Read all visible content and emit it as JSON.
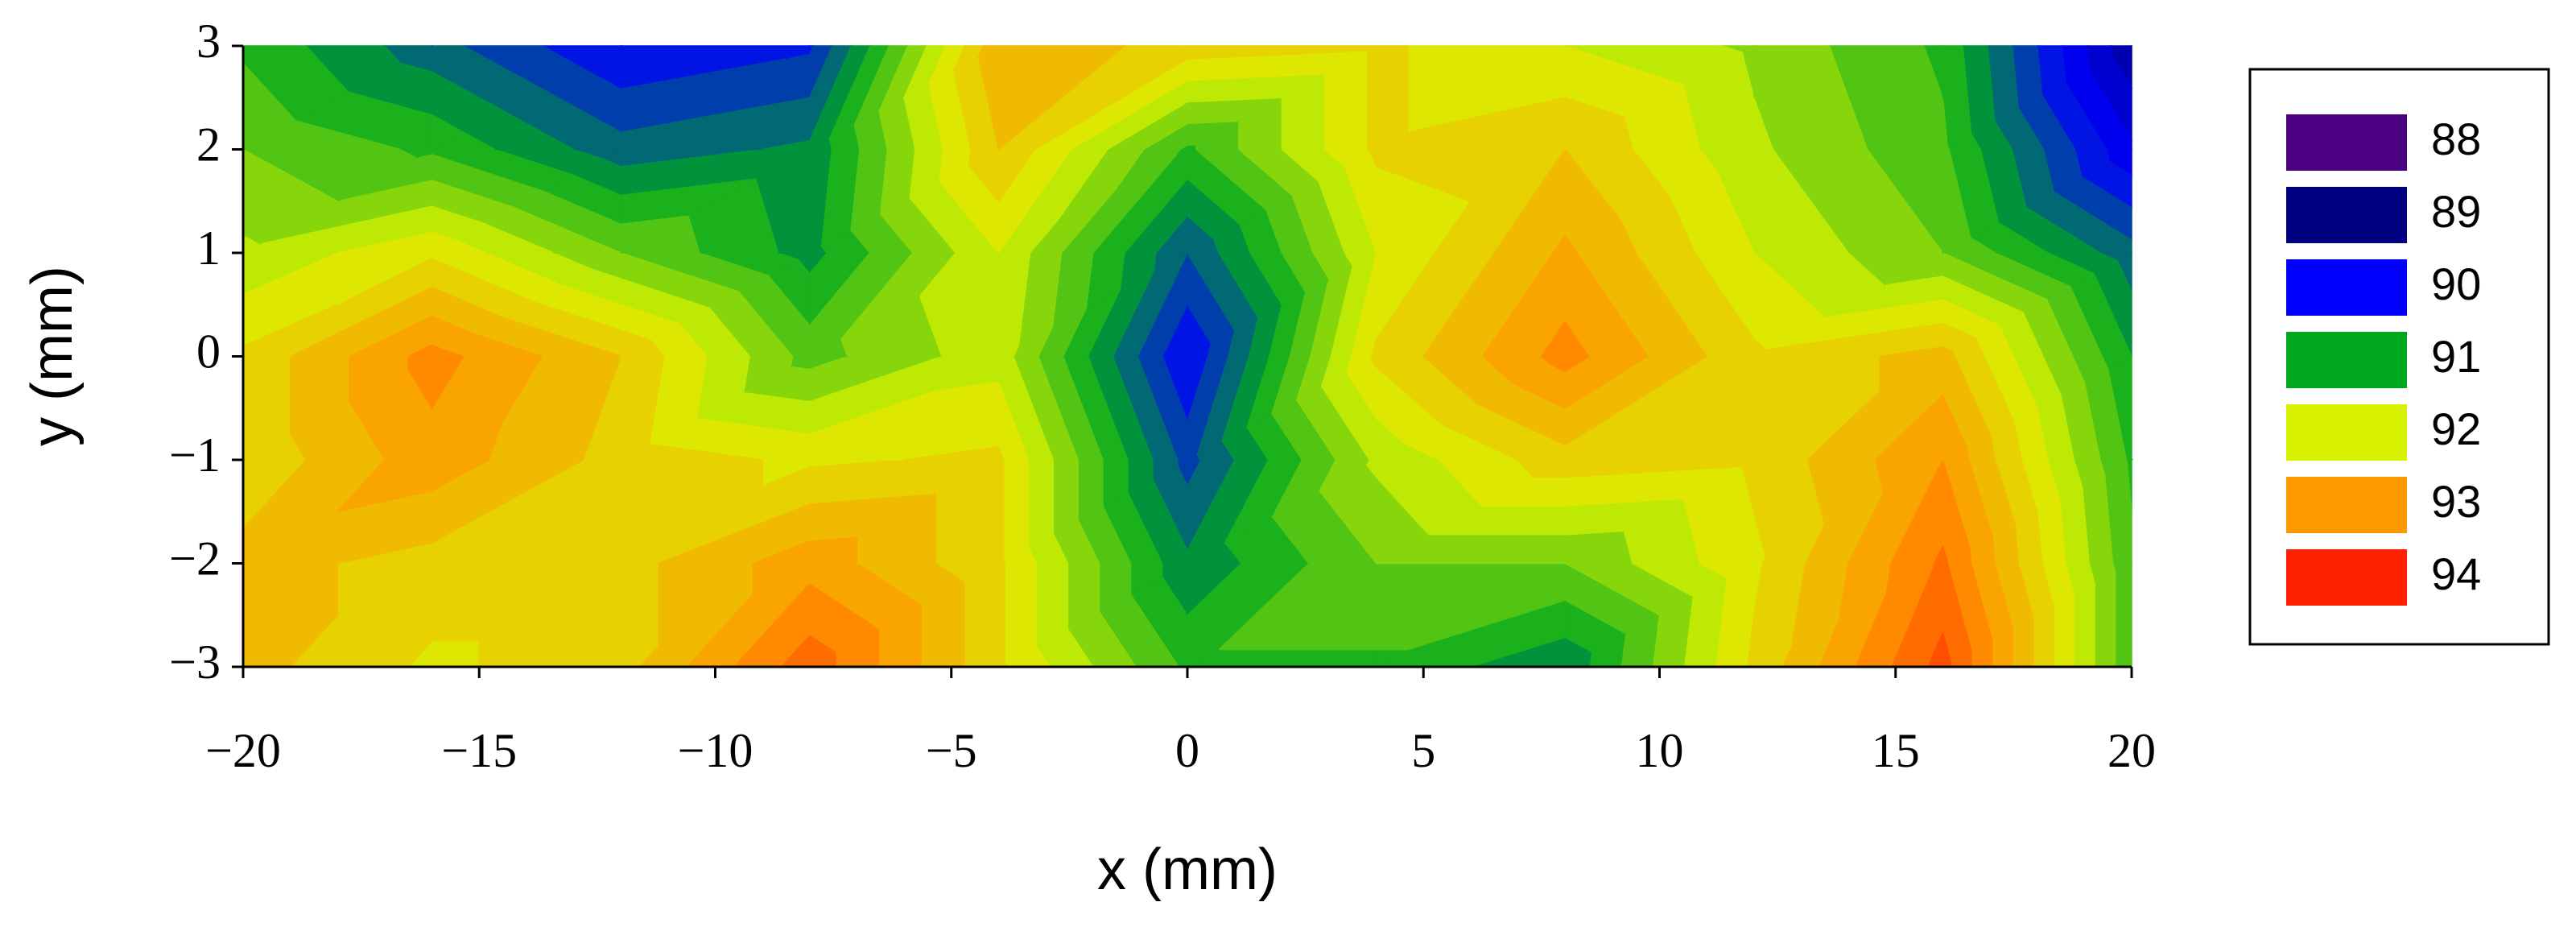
{
  "chart_data": {
    "type": "contour",
    "xlabel": "x (mm)",
    "ylabel": "y (mm)",
    "x": [
      -20,
      -16,
      -12,
      -8,
      -4,
      0,
      4,
      8,
      12,
      16,
      20
    ],
    "y": [
      -3,
      -2,
      -1,
      0,
      1,
      2,
      3
    ],
    "z": [
      [
        92.6,
        92.2,
        92.4,
        93.4,
        92.3,
        91.2,
        91.2,
        90.8,
        92.3,
        93.6,
        91.3
      ],
      [
        92.6,
        92.4,
        92.4,
        92.9,
        92.3,
        90.8,
        91.5,
        91.5,
        92.2,
        93.3,
        91.3
      ],
      [
        92.3,
        92.9,
        92.4,
        92.2,
        92.3,
        90.4,
        91.8,
        92.4,
        92.3,
        93.0,
        91.2
      ],
      [
        92.3,
        93.1,
        92.5,
        91.4,
        91.9,
        90.0,
        92.3,
        93.1,
        92.3,
        92.6,
        91.0
      ],
      [
        91.8,
        92.2,
        91.5,
        90.9,
        92.0,
        90.5,
        92.0,
        92.8,
        92.0,
        91.5,
        90.6
      ],
      [
        91.5,
        91.2,
        90.6,
        90.8,
        92.5,
        91.2,
        92.3,
        92.5,
        91.8,
        91.3,
        89.8
      ],
      [
        91.2,
        90.6,
        90.0,
        90.2,
        92.7,
        92.4,
        92.3,
        92.0,
        91.7,
        91.2,
        89.3
      ]
    ],
    "xlim": [
      -20,
      20
    ],
    "ylim": [
      -3,
      3
    ],
    "xticks": [
      {
        "value": -20,
        "label": "−20"
      },
      {
        "value": -15,
        "label": "−15"
      },
      {
        "value": -10,
        "label": "−10"
      },
      {
        "value": -5,
        "label": "−5"
      },
      0,
      5,
      10,
      15,
      20
    ],
    "yticks": [
      {
        "value": -3,
        "label": "−3"
      },
      {
        "value": -2,
        "label": "−2"
      },
      {
        "value": -1,
        "label": "−1"
      },
      0,
      1,
      2,
      3
    ],
    "colorbar": {
      "levels": [
        88,
        89,
        90,
        91,
        92,
        93,
        94
      ],
      "colors": [
        "#4b0082",
        "#000080",
        "#0000ff",
        "#00a820",
        "#d8f200",
        "#ff9900",
        "#ff2200"
      ]
    }
  }
}
